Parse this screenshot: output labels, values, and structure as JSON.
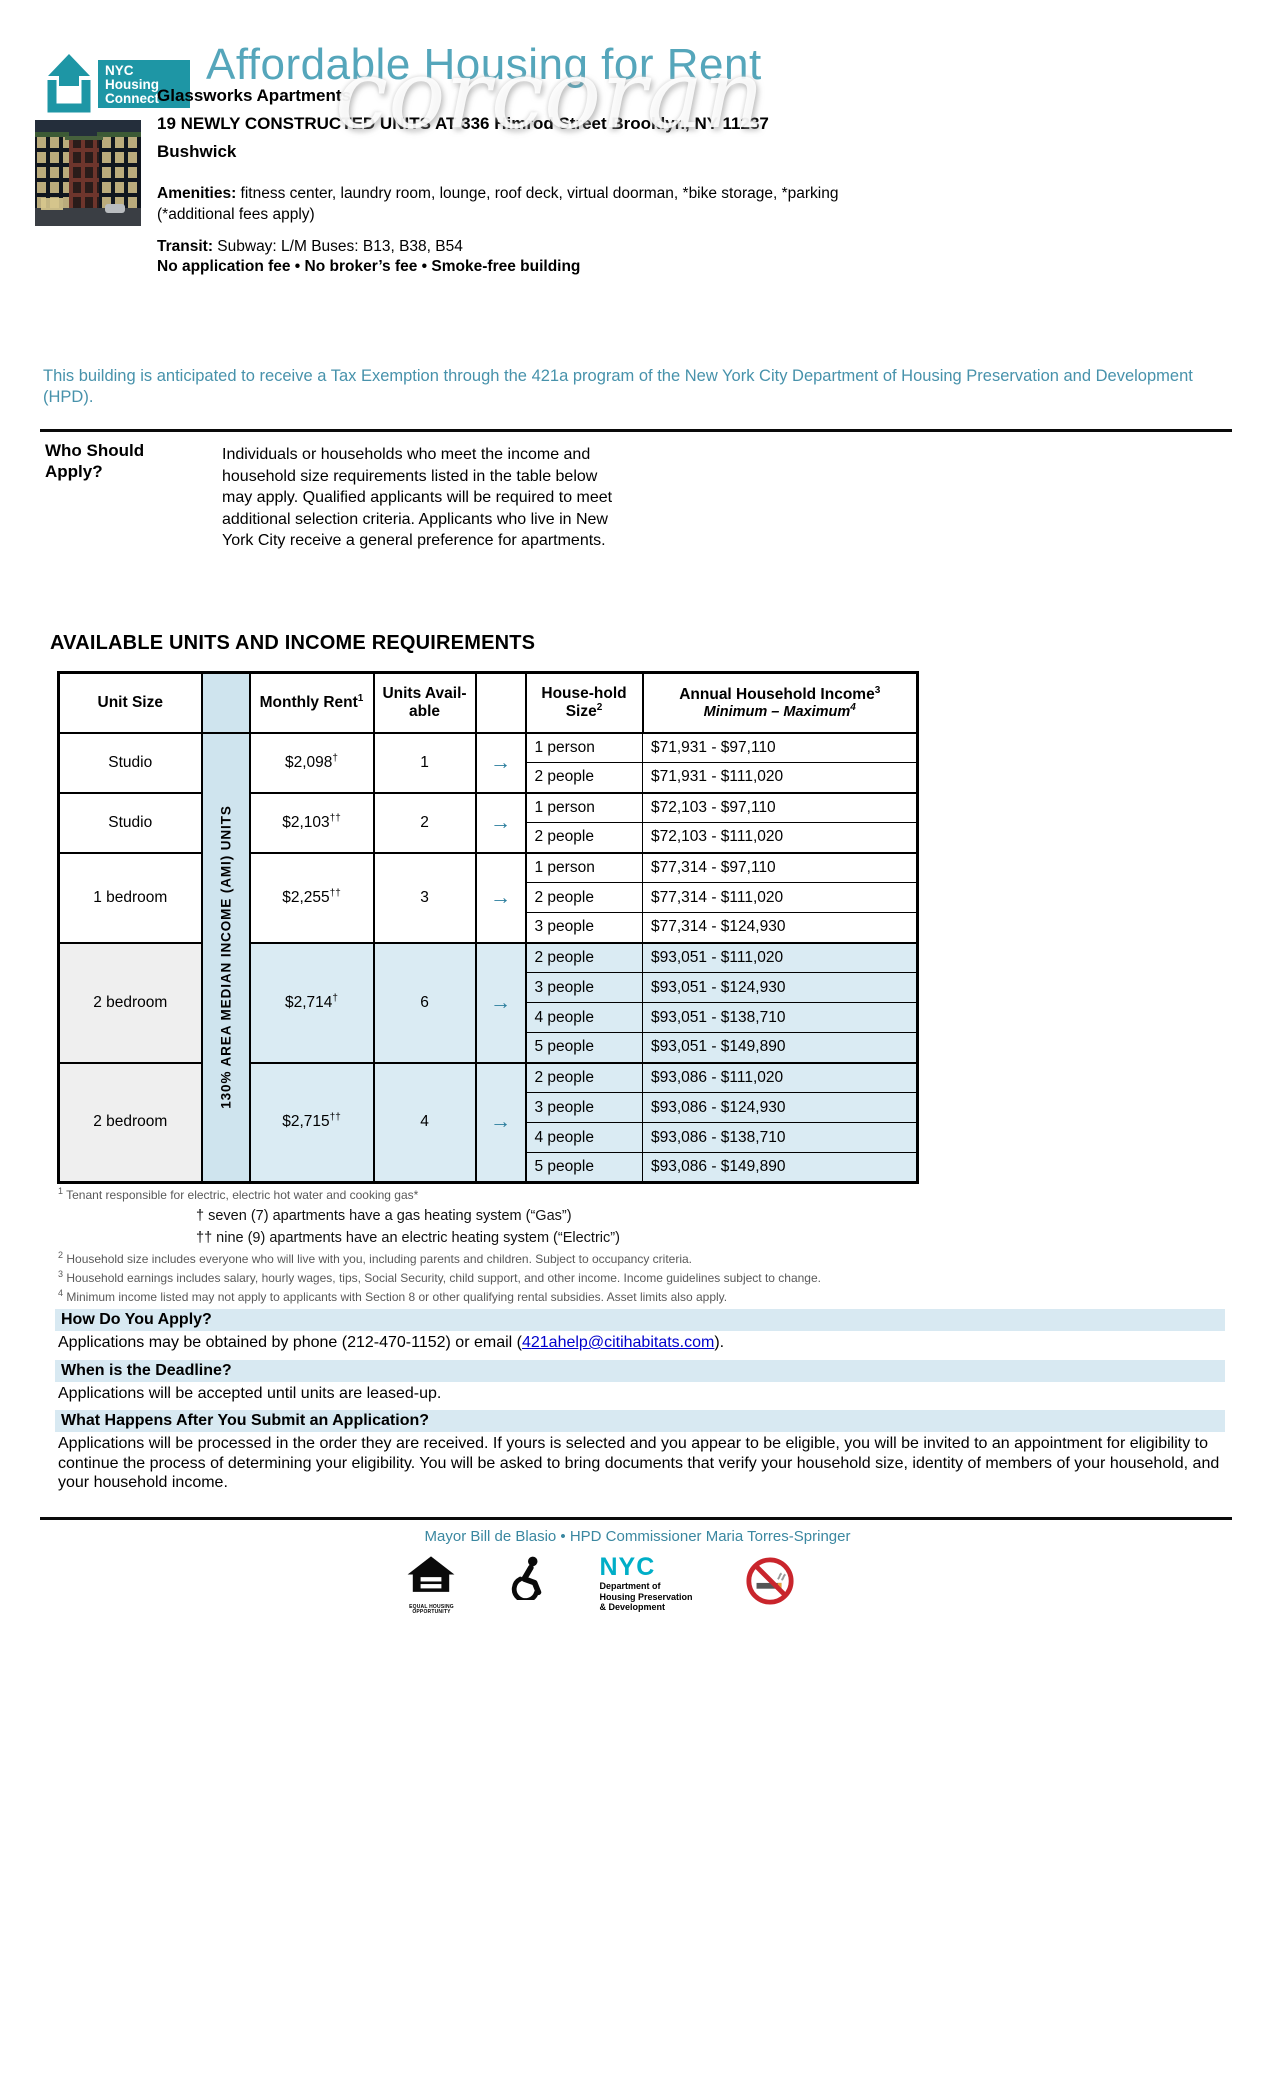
{
  "header": {
    "logo": {
      "line1": "NYC",
      "line2": "Housing",
      "line3": "Connect"
    },
    "title": "Affordable Housing for Rent",
    "watermark": "corcoran",
    "building_name": "Glassworks Apartments",
    "headline": "19 NEWLY CONSTRUCTED UNITS AT 336 Himrod Street Brooklyn, NY 11237",
    "neighborhood": "Bushwick",
    "amenities_label": "Amenities:",
    "amenities_text": " fitness center, laundry room, lounge, roof deck, virtual doorman, *bike storage, *parking",
    "amenities_note": "(*additional fees apply)",
    "transit_label": "Transit:",
    "transit_text": "  Subway: L/M   Buses: B13, B38, B54",
    "fees_line": "No application fee • No broker’s fee • Smoke-free building"
  },
  "tax_note": "This building is anticipated to receive a Tax Exemption through the 421a program of the New York City Department of Housing Preservation and Development (HPD).",
  "who": {
    "heading": "Who Should Apply?",
    "body": "Individuals or households who meet the income and household size requirements listed in the table below may apply. Qualified applicants will be required to meet additional selection criteria. Applicants who live in New York City receive a general preference for apartments."
  },
  "units_table": {
    "title": "AVAILABLE UNITS AND INCOME REQUIREMENTS",
    "ami_label": "130%  AREA MEDIAN INCOME (AMI) UNITS",
    "arrow_glyph": "→",
    "headers": {
      "unit_size": "Unit Size",
      "rent": "Monthly Rent",
      "rent_sup": "1",
      "units_line1": "Units Avail-",
      "units_line2": "able",
      "hh_line1": "House-hold",
      "hh_line2": "Size",
      "hh_sup": "2",
      "income": "Annual Household Income",
      "income_sup": "3",
      "income_sub": "Minimum – Maximum",
      "income_sub_sup": "4"
    },
    "groups": [
      {
        "unit": "Studio",
        "rent": "$2,098",
        "rent_sup": "†",
        "units": "1",
        "highlight": false,
        "rows": [
          {
            "hh": "1 person",
            "income": "$71,931 - $97,110"
          },
          {
            "hh": "2 people",
            "income": "$71,931 - $111,020"
          }
        ]
      },
      {
        "unit": "Studio",
        "rent": "$2,103",
        "rent_sup": "††",
        "units": "2",
        "highlight": false,
        "rows": [
          {
            "hh": "1 person",
            "income": "$72,103 - $97,110"
          },
          {
            "hh": "2 people",
            "income": "$72,103 - $111,020"
          }
        ]
      },
      {
        "unit": "1 bedroom",
        "rent": "$2,255",
        "rent_sup": "††",
        "units": "3",
        "highlight": false,
        "rows": [
          {
            "hh": "1 person",
            "income": "$77,314 - $97,110"
          },
          {
            "hh": "2 people",
            "income": "$77,314 - $111,020"
          },
          {
            "hh": "3 people",
            "income": "$77,314 - $124,930"
          }
        ]
      },
      {
        "unit": "2 bedroom",
        "rent": "$2,714",
        "rent_sup": "†",
        "units": "6",
        "highlight": true,
        "rows": [
          {
            "hh": "2 people",
            "income": "$93,051 - $111,020"
          },
          {
            "hh": "3 people",
            "income": "$93,051 - $124,930"
          },
          {
            "hh": "4 people",
            "income": "$93,051 - $138,710"
          },
          {
            "hh": "5 people",
            "income": "$93,051 - $149,890"
          }
        ]
      },
      {
        "unit": "2 bedroom",
        "rent": "$2,715",
        "rent_sup": "††",
        "units": "4",
        "highlight": true,
        "rows": [
          {
            "hh": "2 people",
            "income": "$93,086 - $111,020"
          },
          {
            "hh": "3 people",
            "income": "$93,086 - $124,930"
          },
          {
            "hh": "4 people",
            "income": "$93,086 - $138,710"
          },
          {
            "hh": "5 people",
            "income": "$93,086 - $149,890"
          }
        ]
      }
    ]
  },
  "footnotes": [
    {
      "marker": "1",
      "kind": "num",
      "text": "Tenant responsible for electric, electric hot water and cooking gas*"
    },
    {
      "marker": "†",
      "kind": "dagger",
      "text": " seven (7) apartments have a gas heating system (“Gas”)"
    },
    {
      "marker": "††",
      "kind": "dagger",
      "text": " nine (9) apartments have an electric heating system (“Electric”)"
    },
    {
      "marker": "2",
      "kind": "num",
      "text": "Household size includes everyone who will live with you, including parents and children. Subject to occupancy criteria."
    },
    {
      "marker": "3",
      "kind": "num",
      "text": "Household earnings includes salary, hourly wages, tips, Social Security, child support, and other income. Income guidelines subject to change."
    },
    {
      "marker": "4",
      "kind": "num",
      "text": "Minimum income listed may not apply to applicants with Section 8 or other qualifying rental subsidies. Asset limits also apply."
    }
  ],
  "faq": [
    {
      "question": "How Do You Apply?",
      "answer_prefix": "Applications may be obtained by phone (212-470-1152) or email (",
      "answer_link": "421ahelp@citihabitats.com",
      "answer_suffix": ")."
    },
    {
      "question": "When is the Deadline?",
      "answer": "Applications will be accepted until units are leased-up."
    },
    {
      "question": "What Happens After You Submit an Application?",
      "answer": "Applications will be processed in the order they are received. If yours is selected and you appear to be eligible, you will be invited to an appointment for eligibility to continue the process of determining your eligibility. You will be asked to bring documents that verify your household size, identity of members of your household, and your household income."
    }
  ],
  "footer": {
    "mayor_line": "Mayor Bill de Blasio • HPD Commissioner Maria Torres-Springer",
    "equal_housing_lines": [
      "EQUAL HOUSING",
      "OPPORTUNITY"
    ],
    "hpd_name": "NYC",
    "hpd_dept_lines": [
      "Department of",
      "Housing Preservation",
      "& Development"
    ]
  },
  "colors": {
    "accent_teal": "#55a6bb",
    "logo_teal": "#1e96a5",
    "note_teal": "#4792ab",
    "mayor_teal": "#3a87a0",
    "arrow_teal": "#2a7d9c",
    "row_blue": "#daebf3",
    "ami_blue": "#cfe4ee",
    "unit_gray": "#efefef",
    "faq_bar_blue": "#d8e9f2",
    "link_blue": "#0000cc",
    "hpd_teal": "#00aec7",
    "no_smoking_red": "#c9252c"
  }
}
